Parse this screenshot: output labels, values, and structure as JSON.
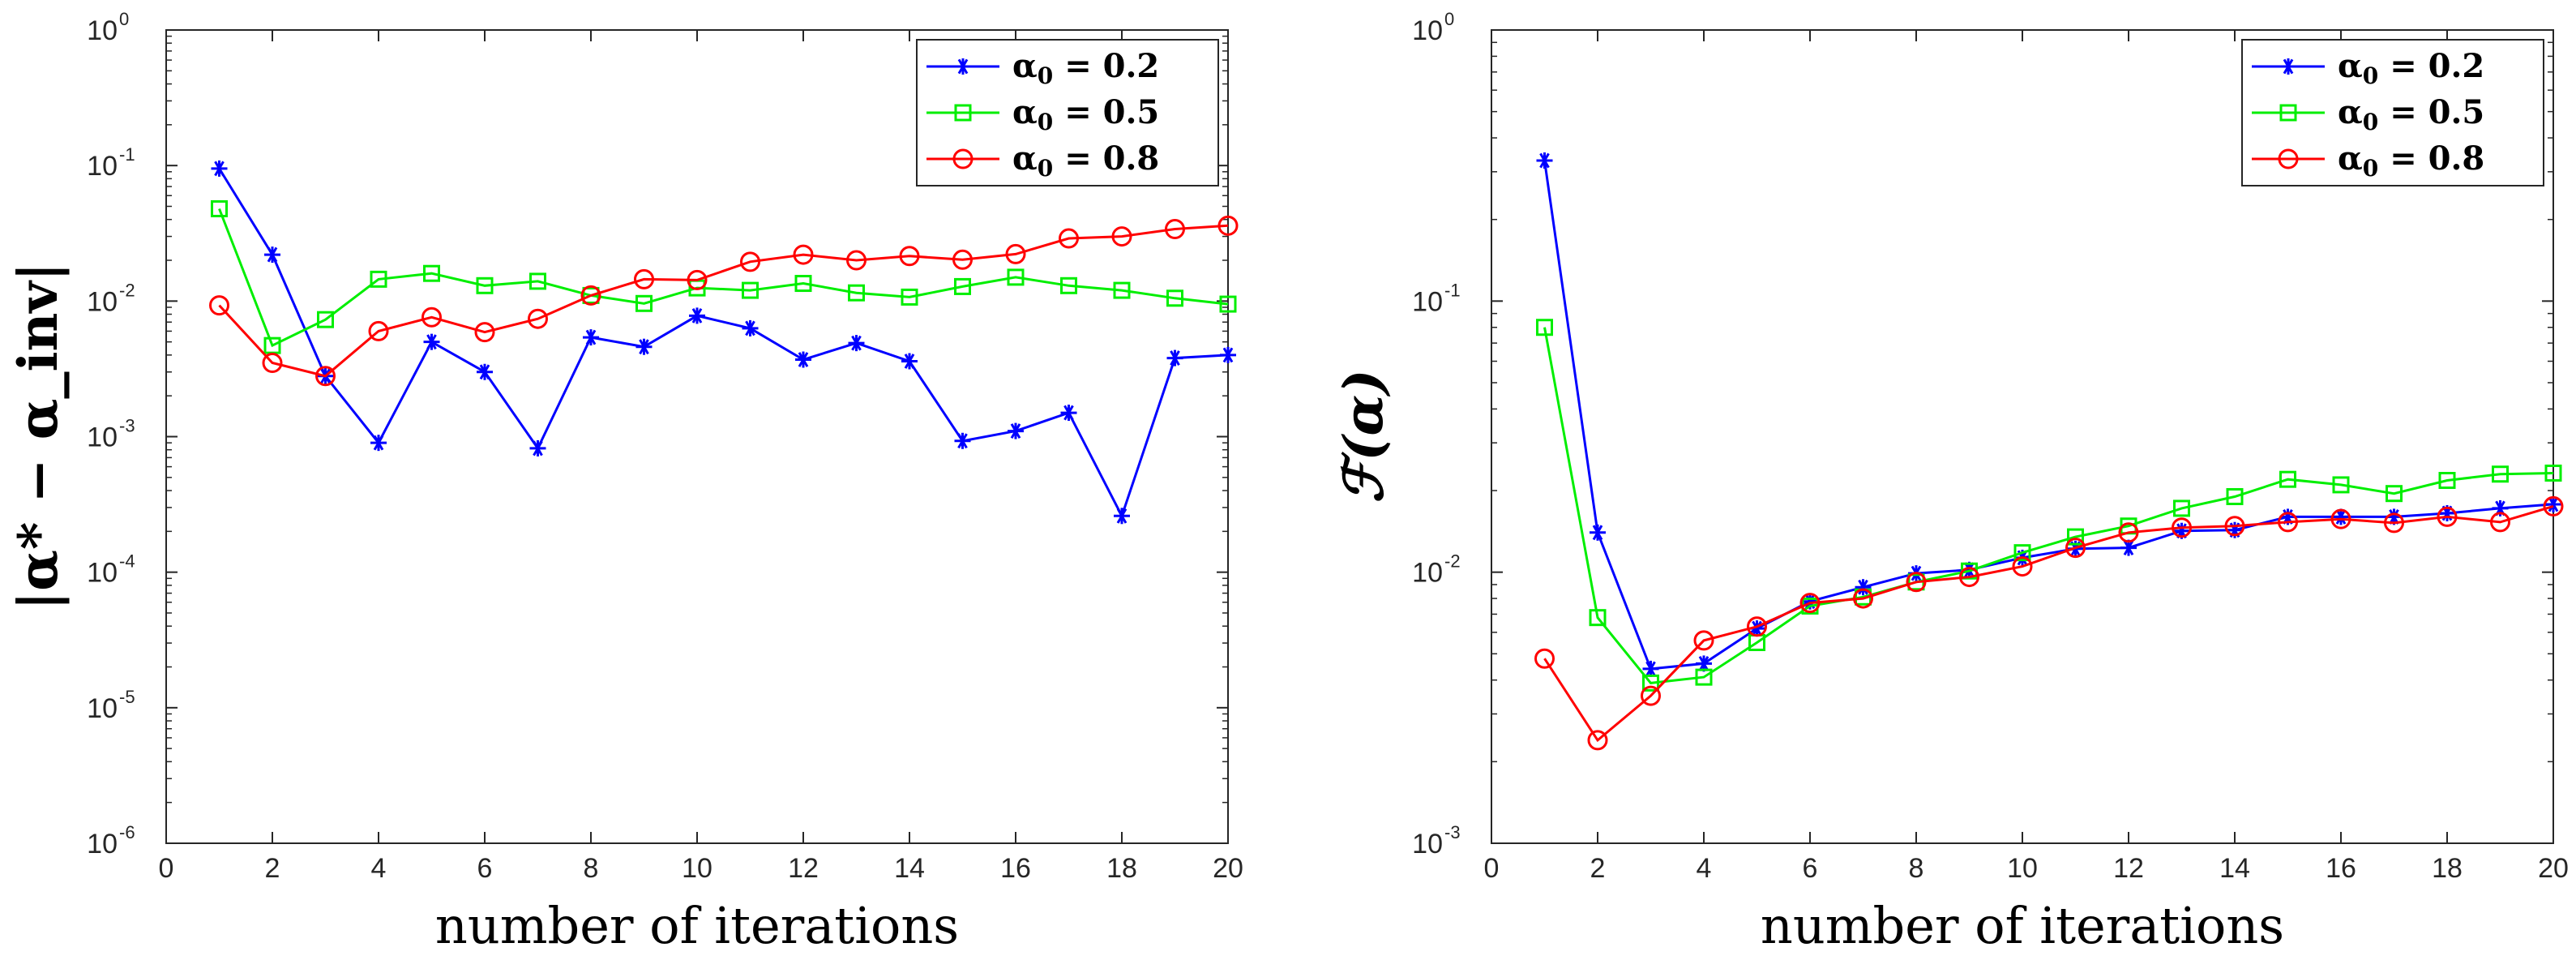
{
  "chart_data": [
    {
      "type": "line",
      "yscale": "log",
      "xlim": [
        0,
        20
      ],
      "ylim": [
        1e-06,
        1
      ],
      "xticks": [
        "0",
        "2",
        "4",
        "6",
        "8",
        "10",
        "12",
        "14",
        "16",
        "18",
        "20"
      ],
      "yticks": [
        {
          "base": "10",
          "exp": "-6"
        },
        {
          "base": "10",
          "exp": "-5"
        },
        {
          "base": "10",
          "exp": "-4"
        },
        {
          "base": "10",
          "exp": "-3"
        },
        {
          "base": "10",
          "exp": "-2"
        },
        {
          "base": "10",
          "exp": "-1"
        },
        {
          "base": "10",
          "exp": "0"
        }
      ],
      "xlabel": "number of iterations",
      "ylabel": "|α* − α_inv|",
      "legend_position": "top-right",
      "x": [
        1,
        2,
        3,
        4,
        5,
        6,
        7,
        8,
        9,
        10,
        11,
        12,
        13,
        14,
        15,
        16,
        17,
        18,
        19,
        20
      ],
      "series": [
        {
          "name": "α0 = 0.2",
          "label_main": "α",
          "label_sub": "0",
          "label_rest": " = 0.2",
          "color": "#0000ff",
          "marker": "star",
          "values": [
            0.095,
            0.022,
            0.0028,
            0.0009,
            0.005,
            0.003,
            0.00082,
            0.0054,
            0.0046,
            0.0078,
            0.0063,
            0.0037,
            0.0049,
            0.0036,
            0.00093,
            0.0011,
            0.0015,
            0.00026,
            0.0038,
            0.004
          ]
        },
        {
          "name": "α0 = 0.5",
          "label_main": "α",
          "label_sub": "0",
          "label_rest": " = 0.5",
          "color": "#00ee00",
          "marker": "square",
          "values": [
            0.048,
            0.0047,
            0.0073,
            0.0145,
            0.016,
            0.013,
            0.014,
            0.011,
            0.0096,
            0.0125,
            0.012,
            0.0135,
            0.0115,
            0.0107,
            0.0128,
            0.015,
            0.013,
            0.012,
            0.0105,
            0.0095
          ]
        },
        {
          "name": "α0 = 0.8",
          "label_main": "α",
          "label_sub": "0",
          "label_rest": " = 0.8",
          "color": "#ff0000",
          "marker": "circle",
          "values": [
            0.0093,
            0.0035,
            0.0028,
            0.006,
            0.0076,
            0.0059,
            0.0074,
            0.011,
            0.0145,
            0.0143,
            0.0195,
            0.022,
            0.02,
            0.0215,
            0.0202,
            0.0222,
            0.029,
            0.03,
            0.034,
            0.036
          ]
        }
      ]
    },
    {
      "type": "line",
      "yscale": "log",
      "xlim": [
        0,
        20
      ],
      "ylim": [
        0.001,
        1
      ],
      "xticks": [
        "0",
        "2",
        "4",
        "6",
        "8",
        "10",
        "12",
        "14",
        "16",
        "18",
        "20"
      ],
      "yticks": [
        {
          "base": "10",
          "exp": "-3"
        },
        {
          "base": "10",
          "exp": "-2"
        },
        {
          "base": "10",
          "exp": "-1"
        },
        {
          "base": "10",
          "exp": "0"
        }
      ],
      "xlabel": "number of iterations",
      "ylabel": "ℱ(α)",
      "legend_position": "top-right",
      "x": [
        1,
        2,
        3,
        4,
        5,
        6,
        7,
        8,
        9,
        10,
        11,
        12,
        13,
        14,
        15,
        16,
        17,
        18,
        19,
        20
      ],
      "series": [
        {
          "name": "α0 = 0.2",
          "label_main": "α",
          "label_sub": "0",
          "label_rest": " = 0.2",
          "color": "#0000ff",
          "marker": "star",
          "values": [
            0.33,
            0.014,
            0.0044,
            0.0046,
            0.0062,
            0.0078,
            0.0088,
            0.0099,
            0.0102,
            0.0113,
            0.0122,
            0.0123,
            0.0142,
            0.0143,
            0.016,
            0.016,
            0.016,
            0.0165,
            0.0172,
            0.0178
          ]
        },
        {
          "name": "α0 = 0.5",
          "label_main": "α",
          "label_sub": "0",
          "label_rest": " = 0.5",
          "color": "#00ee00",
          "marker": "square",
          "values": [
            0.08,
            0.0068,
            0.0039,
            0.0041,
            0.0055,
            0.0075,
            0.0081,
            0.0092,
            0.0101,
            0.0118,
            0.0135,
            0.0148,
            0.0172,
            0.019,
            0.022,
            0.021,
            0.0195,
            0.0218,
            0.023,
            0.0232
          ]
        },
        {
          "name": "α0 = 0.8",
          "label_main": "α",
          "label_sub": "0",
          "label_rest": " = 0.8",
          "color": "#ff0000",
          "marker": "circle",
          "values": [
            0.0048,
            0.0024,
            0.0035,
            0.0056,
            0.0063,
            0.0077,
            0.008,
            0.0092,
            0.0096,
            0.0105,
            0.0123,
            0.014,
            0.0146,
            0.0148,
            0.0153,
            0.0157,
            0.0152,
            0.016,
            0.0153,
            0.0175
          ]
        }
      ]
    }
  ]
}
